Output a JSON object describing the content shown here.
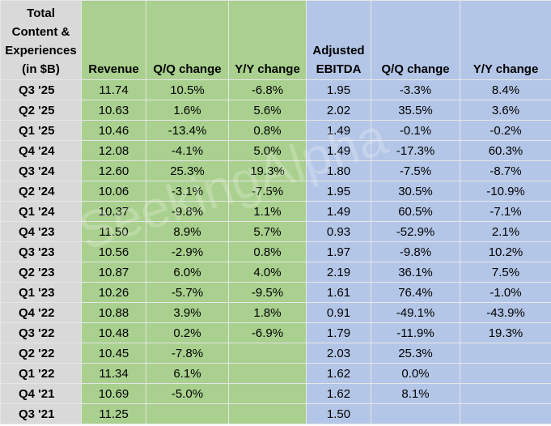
{
  "table": {
    "headers": [
      "Total Content & Experiences (in $B)",
      "Revenue",
      "Q/Q change",
      "Y/Y change",
      "Adjusted EBITDA",
      "Q/Q change",
      "Y/Y change"
    ],
    "rows": [
      [
        "Q3 '25",
        "11.74",
        "10.5%",
        "-6.8%",
        "1.95",
        "-3.3%",
        "8.4%"
      ],
      [
        "Q2 '25",
        "10.63",
        "1.6%",
        "5.6%",
        "2.02",
        "35.5%",
        "3.6%"
      ],
      [
        "Q1 '25",
        "10.46",
        "-13.4%",
        "0.8%",
        "1.49",
        "-0.1%",
        "-0.2%"
      ],
      [
        "Q4 '24",
        "12.08",
        "-4.1%",
        "5.0%",
        "1.49",
        "-17.3%",
        "60.3%"
      ],
      [
        "Q3 '24",
        "12.60",
        "25.3%",
        "19.3%",
        "1.80",
        "-7.5%",
        "-8.7%"
      ],
      [
        "Q2 '24",
        "10.06",
        "-3.1%",
        "-7.5%",
        "1.95",
        "30.5%",
        "-10.9%"
      ],
      [
        "Q1 '24",
        "10.37",
        "-9.8%",
        "1.1%",
        "1.49",
        "60.5%",
        "-7.1%"
      ],
      [
        "Q4 '23",
        "11.50",
        "8.9%",
        "5.7%",
        "0.93",
        "-52.9%",
        "2.1%"
      ],
      [
        "Q3 '23",
        "10.56",
        "-2.9%",
        "0.8%",
        "1.97",
        "-9.8%",
        "10.2%"
      ],
      [
        "Q2 '23",
        "10.87",
        "6.0%",
        "4.0%",
        "2.19",
        "36.1%",
        "7.5%"
      ],
      [
        "Q1 '23",
        "10.26",
        "-5.7%",
        "-9.5%",
        "1.61",
        "76.4%",
        "-1.0%"
      ],
      [
        "Q4 '22",
        "10.88",
        "3.9%",
        "1.8%",
        "0.91",
        "-49.1%",
        "-43.9%"
      ],
      [
        "Q3 '22",
        "10.48",
        "0.2%",
        "-6.9%",
        "1.79",
        "-11.9%",
        "19.3%"
      ],
      [
        "Q2 '22",
        "10.45",
        "-7.8%",
        null,
        "2.03",
        "25.3%",
        null
      ],
      [
        "Q1 '22",
        "11.34",
        "6.1%",
        null,
        "1.62",
        "0.0%",
        null
      ],
      [
        "Q4 '21",
        "10.69",
        "-5.0%",
        null,
        "1.62",
        "8.1%",
        null
      ],
      [
        "Q3 '21",
        "11.25",
        null,
        null,
        "1.50",
        null,
        null
      ]
    ]
  },
  "watermark": "SeekingAlpha"
}
